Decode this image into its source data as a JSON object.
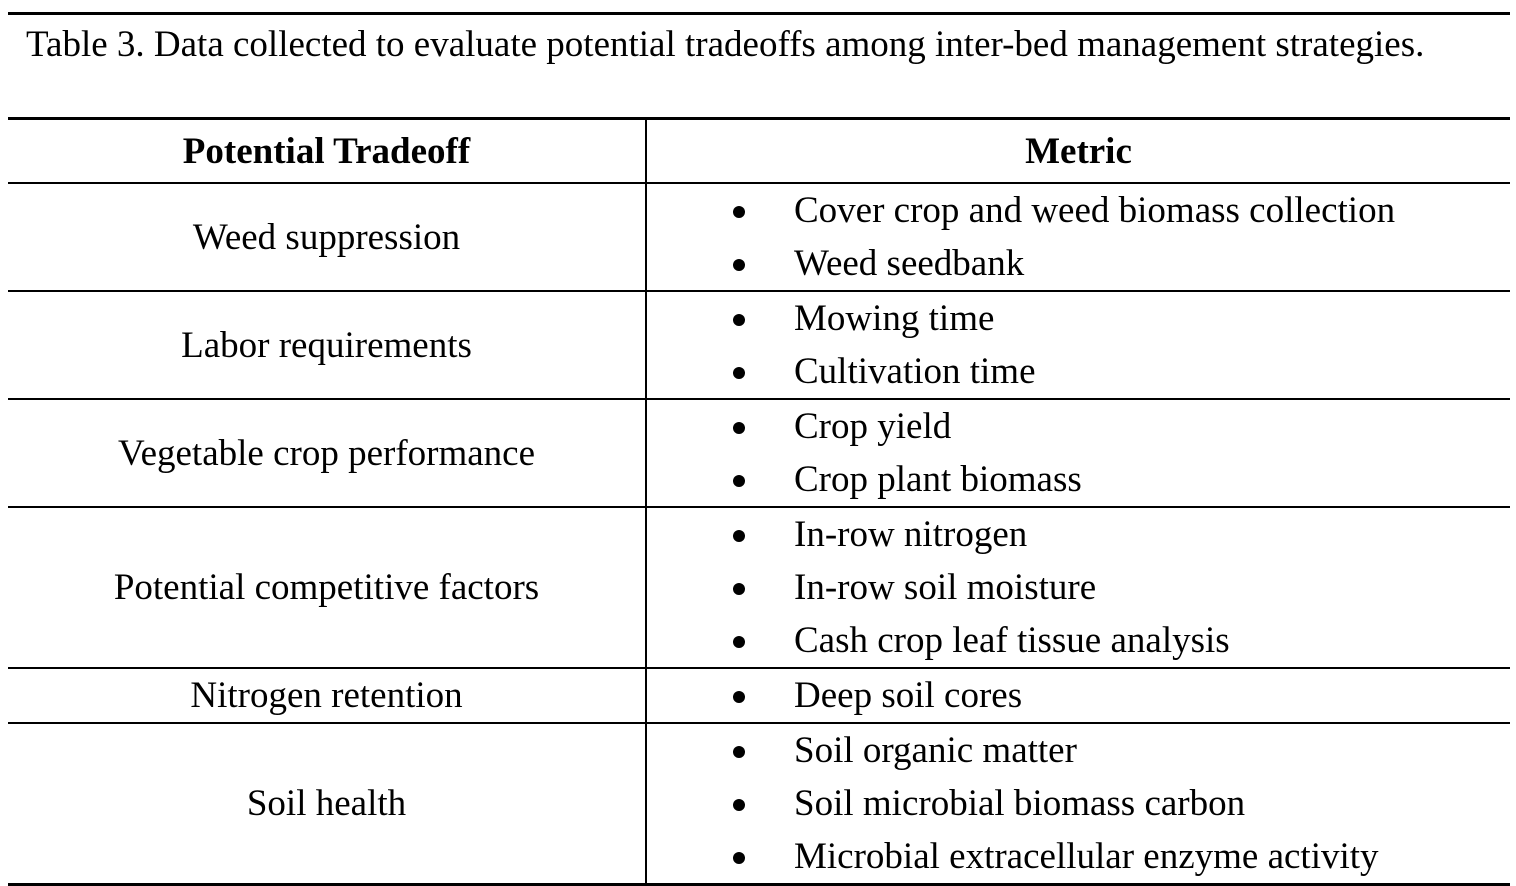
{
  "caption": "Table 3. Data collected to evaluate potential tradeoffs among inter-bed management strategies.",
  "headers": {
    "tradeoff": "Potential Tradeoff",
    "metric": "Metric"
  },
  "rows": [
    {
      "tradeoff": "Weed suppression",
      "metrics": [
        "Cover crop and weed biomass collection",
        "Weed seedbank"
      ]
    },
    {
      "tradeoff": "Labor requirements",
      "metrics": [
        "Mowing time",
        "Cultivation time"
      ]
    },
    {
      "tradeoff": "Vegetable crop performance",
      "metrics": [
        "Crop yield",
        "Crop plant biomass"
      ]
    },
    {
      "tradeoff": "Potential competitive factors",
      "metrics": [
        "In-row nitrogen",
        "In-row soil moisture",
        "Cash crop leaf tissue analysis"
      ]
    },
    {
      "tradeoff": "Nitrogen retention",
      "metrics": [
        "Deep soil cores"
      ]
    },
    {
      "tradeoff": "Soil health",
      "metrics": [
        "Soil organic matter",
        "Soil microbial biomass carbon",
        "Microbial extracellular enzyme activity"
      ]
    }
  ]
}
